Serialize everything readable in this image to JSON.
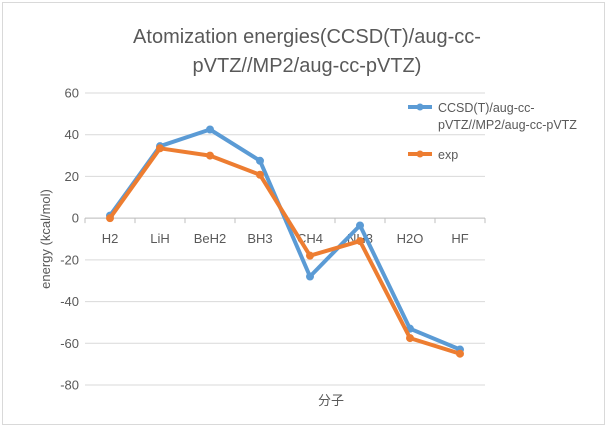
{
  "chart_data": {
    "type": "line",
    "title": "Atomization energies(CCSD(T)/aug-cc-pVTZ//MP2/aug-cc-pVTZ)",
    "title_lines": [
      "Atomization energies(CCSD(T)/aug-cc-",
      "pVTZ//MP2/aug-cc-pVTZ)"
    ],
    "xlabel": "分子",
    "ylabel": "energy (kcal/mol)",
    "ylim": [
      -80,
      60
    ],
    "yticks": [
      60,
      40,
      20,
      0,
      -20,
      -40,
      -60,
      -80
    ],
    "categories": [
      "H2",
      "LiH",
      "BeH2",
      "BH3",
      "CH4",
      "NH3",
      "H2O",
      "HF"
    ],
    "grid": true,
    "legend_position": "right",
    "series": [
      {
        "name": "CCSD(T)/aug-cc-pVTZ//MP2/aug-cc-pVTZ",
        "name_lines": [
          "CCSD(T)/aug-cc-",
          "pVTZ//MP2/aug-cc-pVTZ"
        ],
        "color": "#5b9bd5",
        "values": [
          1.2,
          34.5,
          42.5,
          27.5,
          -28.0,
          -3.5,
          -53.0,
          -63.0
        ]
      },
      {
        "name": "exp",
        "name_lines": [
          "exp"
        ],
        "color": "#ed7d31",
        "values": [
          0.0,
          33.5,
          30.0,
          20.8,
          -18.0,
          -11.0,
          -57.5,
          -65.0
        ]
      }
    ]
  }
}
